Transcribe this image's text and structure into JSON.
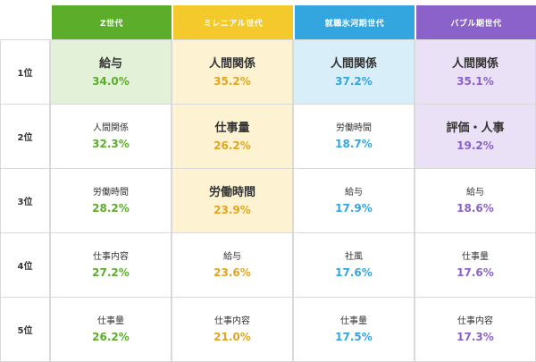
{
  "generations": [
    {
      "name": "Z世代"
    },
    {
      "name": "ミレニアル世代"
    },
    {
      "name": "就職氷河期世代"
    },
    {
      "name": "バブル期世代"
    }
  ],
  "ranks": [
    "1位",
    "2位",
    "3位",
    "4位",
    "5位"
  ],
  "rows": [
    [
      {
        "label": "給与",
        "pct": "34.0%"
      },
      {
        "label": "人間関係",
        "pct": "35.2%"
      },
      {
        "label": "人間関係",
        "pct": "37.2%"
      },
      {
        "label": "人間関係",
        "pct": "35.1%"
      }
    ],
    [
      {
        "label": "人間関係",
        "pct": "32.3%"
      },
      {
        "label": "仕事量",
        "pct": "26.2%"
      },
      {
        "label": "労働時間",
        "pct": "18.7%"
      },
      {
        "label": "評価・人事",
        "pct": "19.2%"
      }
    ],
    [
      {
        "label": "労働時間",
        "pct": "28.2%"
      },
      {
        "label": "労働時間",
        "pct": "23.9%"
      },
      {
        "label": "給与",
        "pct": "17.9%"
      },
      {
        "label": "給与",
        "pct": "18.6%"
      }
    ],
    [
      {
        "label": "仕事内容",
        "pct": "27.2%"
      },
      {
        "label": "給与",
        "pct": "23.6%"
      },
      {
        "label": "社風",
        "pct": "17.6%"
      },
      {
        "label": "仕事量",
        "pct": "17.6%"
      }
    ],
    [
      {
        "label": "仕事量",
        "pct": "26.2%"
      },
      {
        "label": "仕事内容",
        "pct": "21.0%"
      },
      {
        "label": "仕事量",
        "pct": "17.5%"
      },
      {
        "label": "仕事内容",
        "pct": "17.3%"
      }
    ]
  ],
  "colors": {
    "z": "#5cae2a",
    "millennial": "#f3c92b",
    "ice_age": "#34a6df",
    "bubble": "#8a62c9"
  }
}
